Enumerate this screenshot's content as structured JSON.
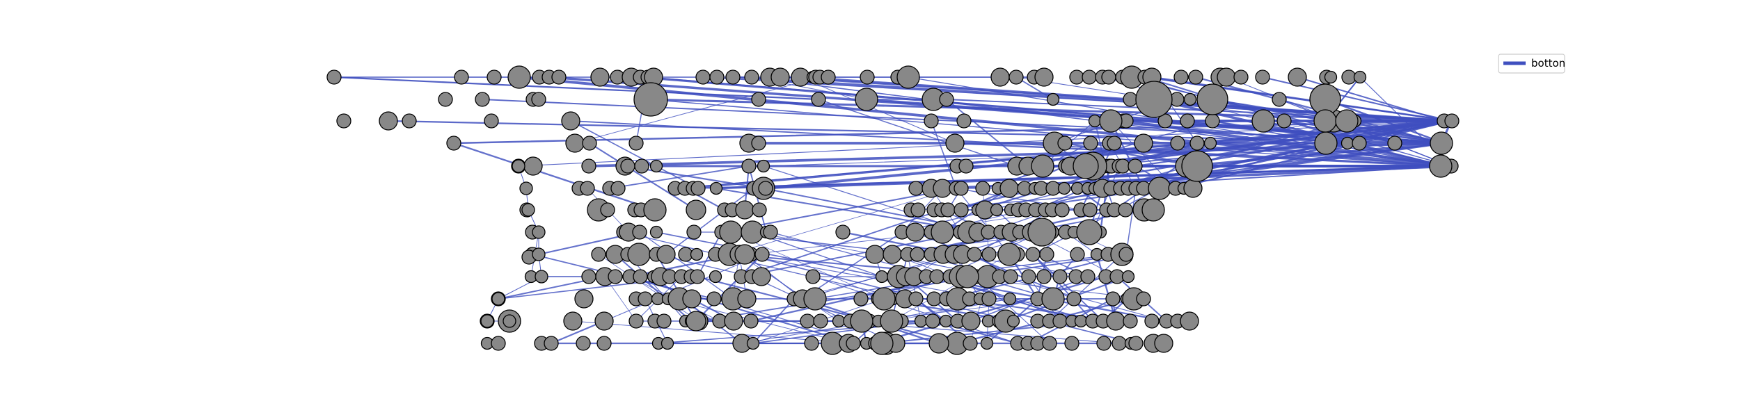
{
  "legend": {
    "label": "botton"
  },
  "colors": {
    "edge": "#3f4fbf",
    "node_fill": "#888888",
    "node_stroke": "#000000"
  }
}
